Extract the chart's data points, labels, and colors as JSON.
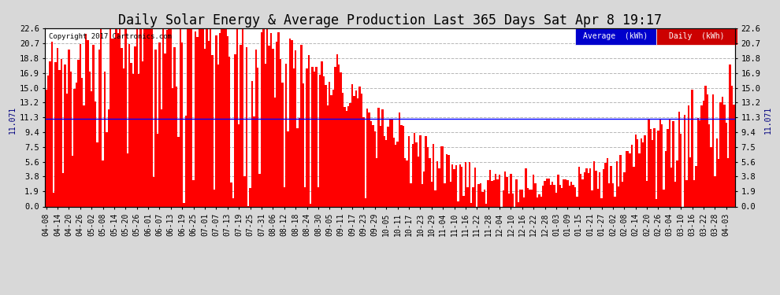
{
  "title": "Daily Solar Energy & Average Production Last 365 Days Sat Apr 8 19:17",
  "copyright": "Copyright 2017 Cartronics.com",
  "average_value": 11.071,
  "ylim": [
    0.0,
    22.6
  ],
  "yticks": [
    0.0,
    1.9,
    3.8,
    5.6,
    7.5,
    9.4,
    11.3,
    13.2,
    15.0,
    16.9,
    18.8,
    20.7,
    22.6
  ],
  "bar_color": "#ff0000",
  "average_color": "#0000ff",
  "background_color": "#d8d8d8",
  "plot_bg_color": "#ffffff",
  "grid_color": "#888888",
  "title_fontsize": 12,
  "avg_label": "Average  (kWh)",
  "daily_label": "Daily  (kWh)",
  "avg_label_bg": "#0000cc",
  "daily_label_bg": "#cc0000",
  "x_labels": [
    "04-08",
    "04-14",
    "04-20",
    "04-26",
    "05-02",
    "05-08",
    "05-14",
    "05-20",
    "05-26",
    "06-01",
    "06-07",
    "06-13",
    "06-19",
    "06-25",
    "07-01",
    "07-07",
    "07-13",
    "07-19",
    "07-25",
    "07-31",
    "08-06",
    "08-12",
    "08-18",
    "08-24",
    "08-30",
    "09-05",
    "09-11",
    "09-17",
    "09-23",
    "09-29",
    "10-05",
    "10-11",
    "10-17",
    "10-23",
    "10-29",
    "11-04",
    "11-10",
    "11-16",
    "11-22",
    "11-28",
    "12-04",
    "12-10",
    "12-16",
    "12-22",
    "12-28",
    "01-03",
    "01-09",
    "01-15",
    "01-21",
    "01-27",
    "02-02",
    "02-08",
    "02-14",
    "02-20",
    "02-26",
    "03-04",
    "03-10",
    "03-16",
    "03-22",
    "03-28",
    "04-03"
  ],
  "x_label_indices": [
    0,
    6,
    12,
    18,
    24,
    30,
    36,
    42,
    48,
    54,
    60,
    66,
    72,
    78,
    84,
    90,
    96,
    102,
    108,
    114,
    120,
    126,
    132,
    138,
    144,
    150,
    156,
    162,
    168,
    174,
    180,
    186,
    192,
    198,
    204,
    210,
    216,
    222,
    228,
    234,
    240,
    246,
    252,
    258,
    264,
    270,
    276,
    282,
    288,
    294,
    300,
    306,
    312,
    318,
    324,
    330,
    336,
    342,
    348,
    354,
    360
  ],
  "n_days": 365
}
